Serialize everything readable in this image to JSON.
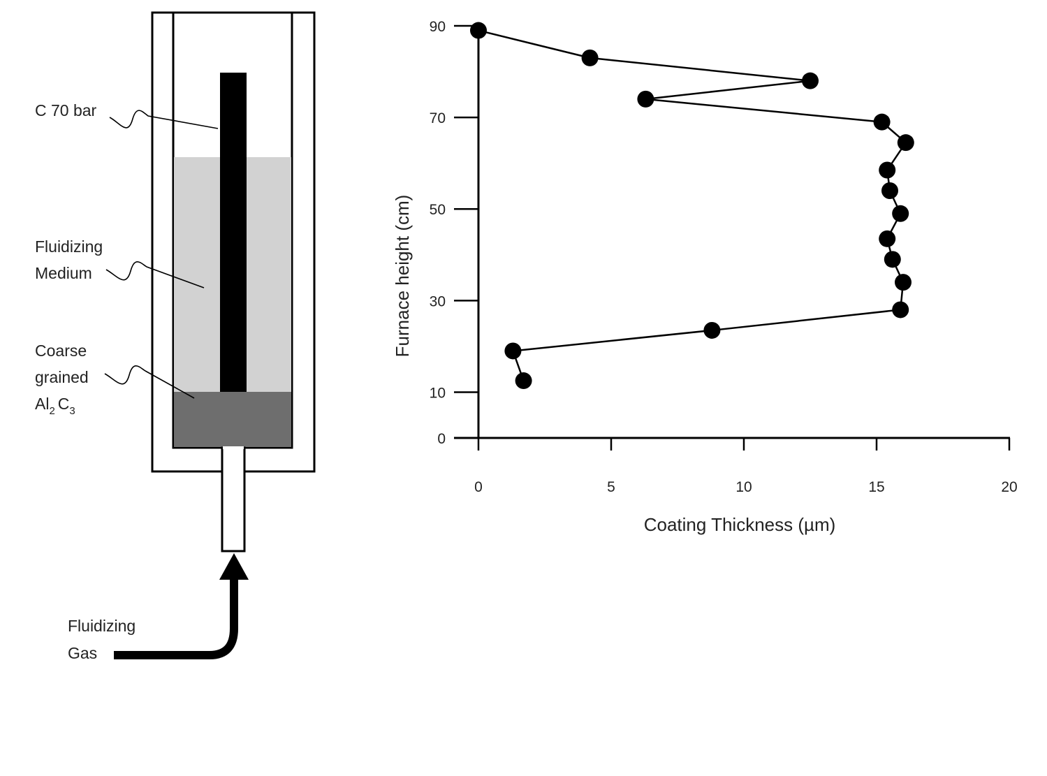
{
  "diagram": {
    "labels": {
      "bar": "C 70 bar",
      "medium_line1": "Fluidizing",
      "medium_line2": "Medium",
      "coarse_line1": "Coarse",
      "coarse_line2": "grained",
      "al_base": "Al",
      "al_sub": "2",
      "c_base": "C",
      "c_sub": "3",
      "gas_line1": "Fluidizing",
      "gas_line2": "Gas"
    },
    "colors": {
      "medium_fill": "#d2d2d2",
      "coarse_fill": "#6e6e6e",
      "bar_fill": "#000000",
      "outline": "#000000"
    }
  },
  "chart_data": {
    "type": "line",
    "xlabel": "Coating Thickness (µm)",
    "ylabel": "Furnace height (cm)",
    "xlim": [
      0,
      20
    ],
    "ylim": [
      0,
      90
    ],
    "xticks": [
      0,
      5,
      10,
      15,
      20
    ],
    "yticks": [
      0,
      10,
      30,
      50,
      70,
      90
    ],
    "grid": false,
    "marker": "filled-circle",
    "line_color": "#000000",
    "series": [
      {
        "x": [
          0.0,
          4.2,
          12.5,
          6.3,
          15.2,
          16.1,
          15.4,
          15.5,
          15.9,
          15.4,
          15.6,
          16.0,
          15.9,
          8.8,
          1.3,
          1.7
        ],
        "y": [
          89,
          83,
          78,
          74,
          69,
          64.5,
          58.5,
          54,
          49,
          43.5,
          39,
          34,
          28,
          23.5,
          19,
          12.5
        ]
      }
    ]
  }
}
